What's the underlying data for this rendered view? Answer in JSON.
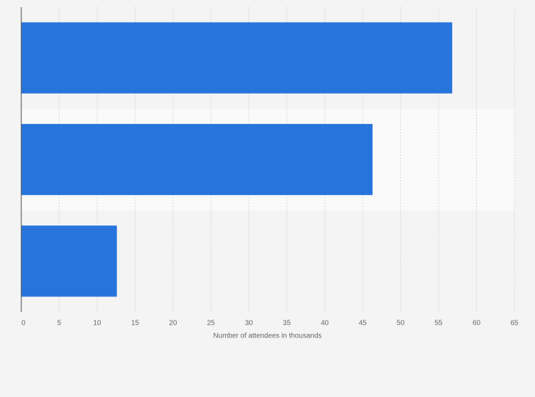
{
  "chart_data": {
    "type": "bar",
    "orientation": "horizontal",
    "x_label": "Number of attendees in thousands",
    "categories": [
      null,
      null,
      null
    ],
    "values": [
      56.8,
      46.3,
      12.6
    ],
    "color": "#2775dc",
    "xlim": [
      0,
      65
    ],
    "xticks": [
      0,
      5,
      10,
      15,
      20,
      25,
      30,
      35,
      40,
      45,
      50,
      55,
      60,
      65
    ],
    "grid": true
  }
}
